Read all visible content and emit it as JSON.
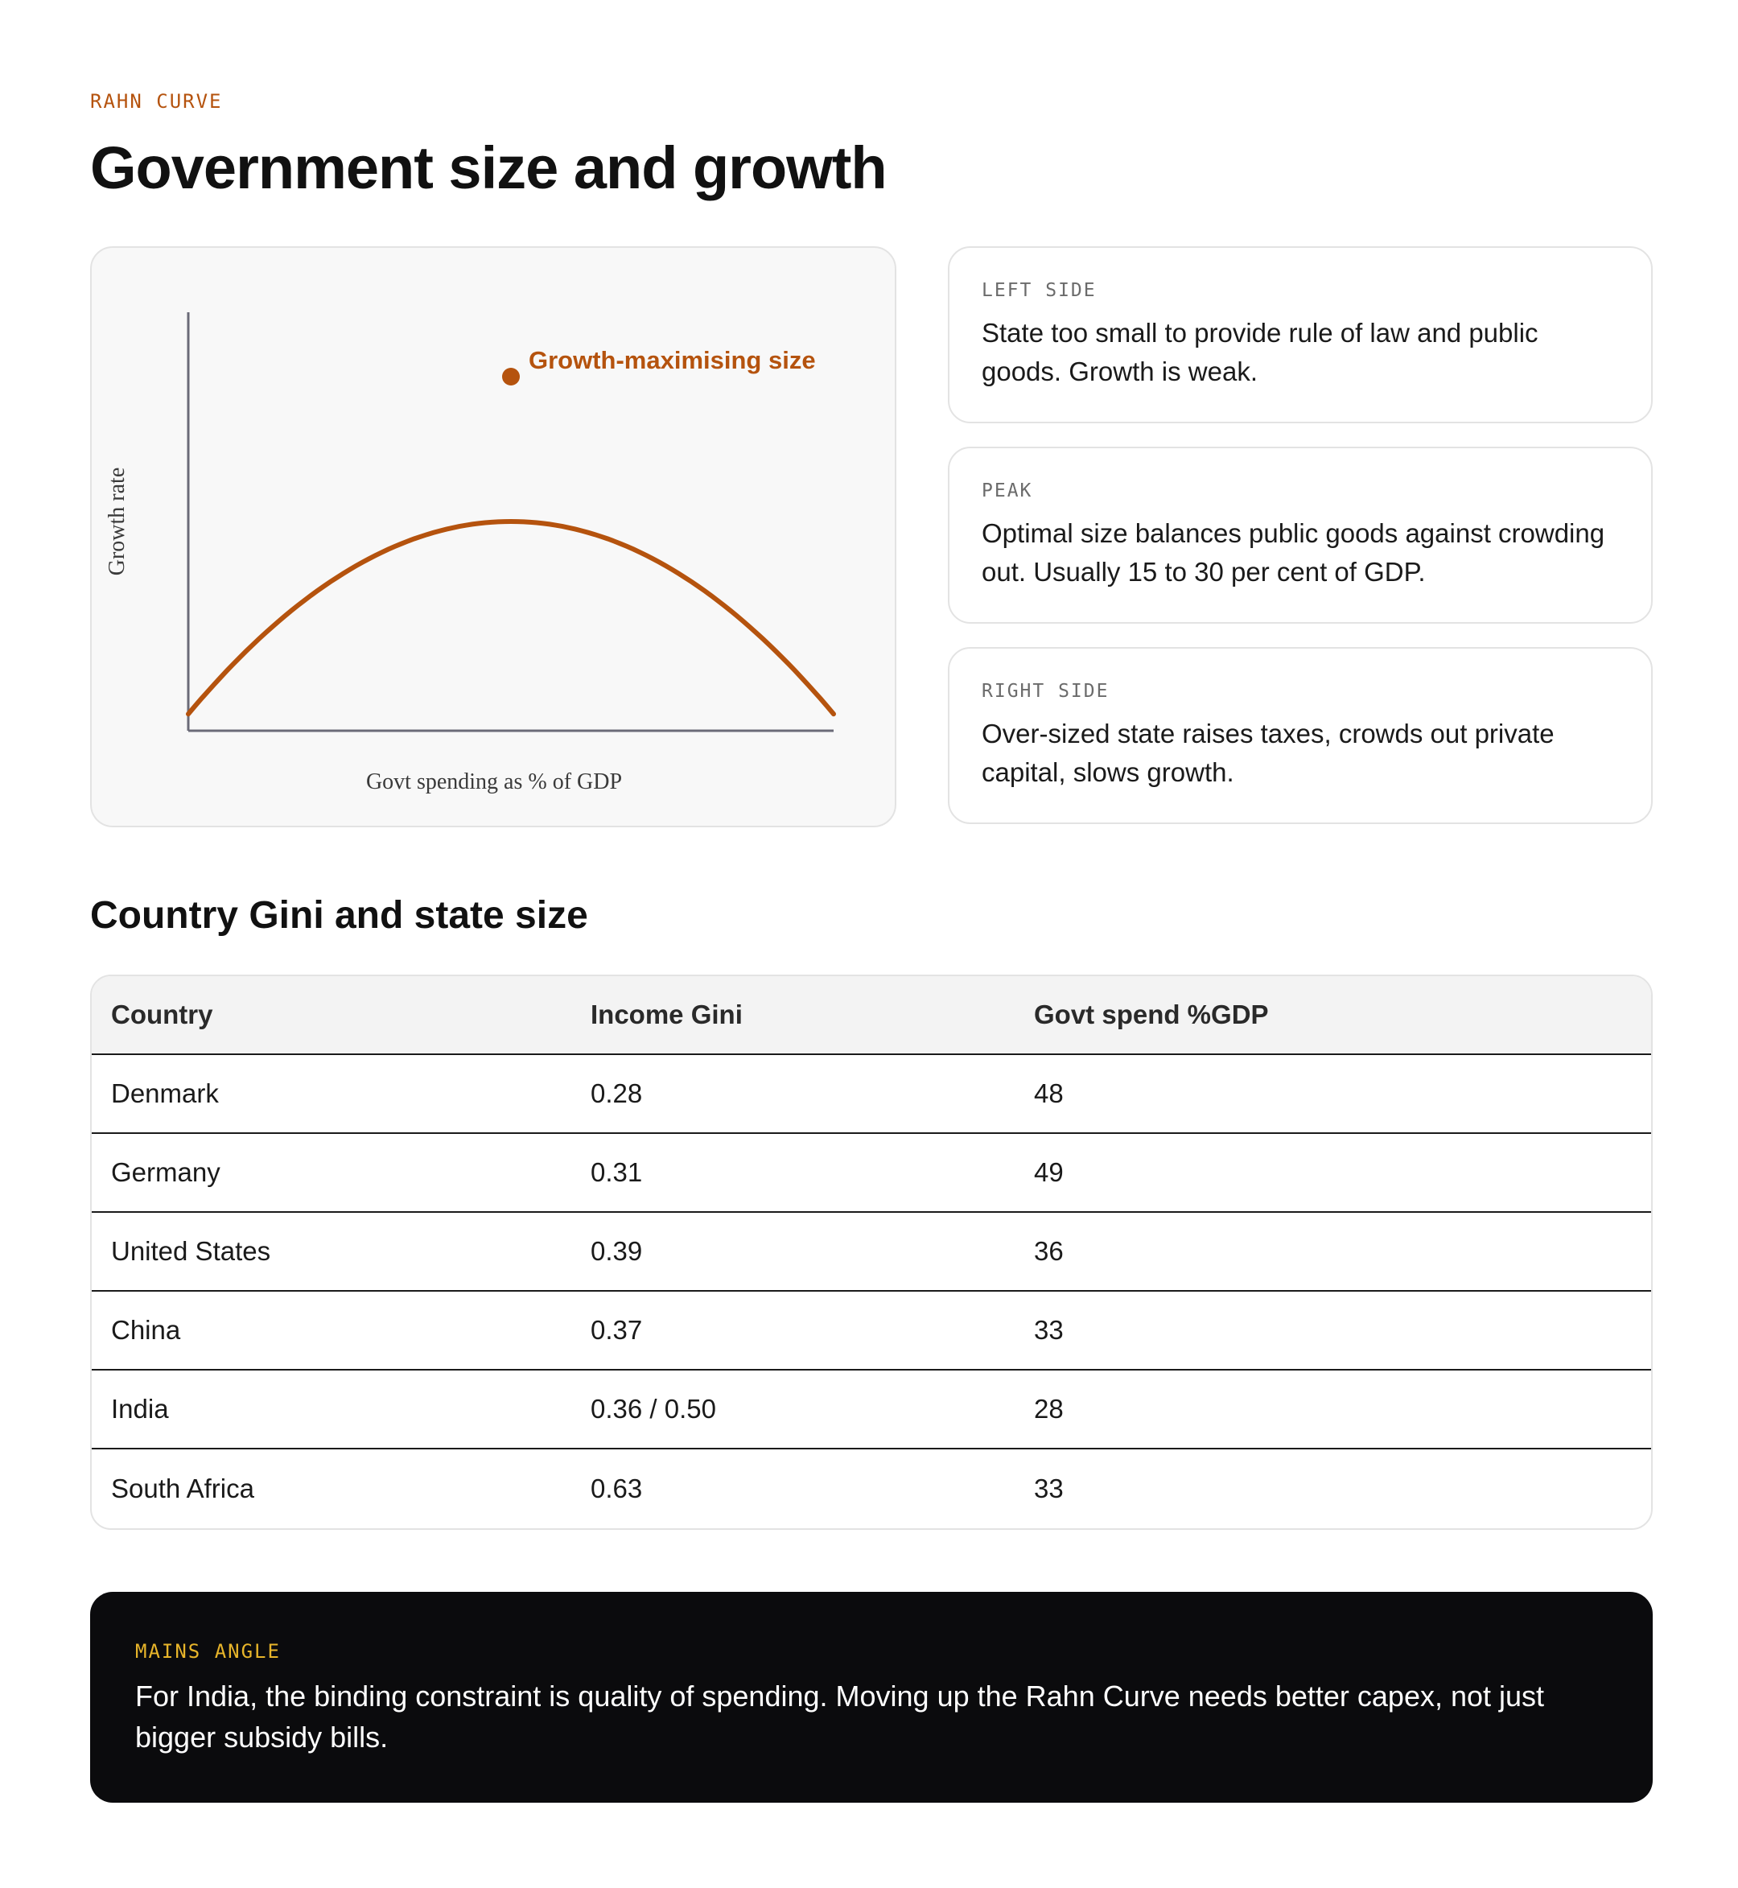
{
  "header": {
    "eyebrow": "RAHN CURVE",
    "title": "Government size and growth"
  },
  "chart_data": {
    "type": "line",
    "title": "",
    "xlabel": "Govt spending as % of GDP",
    "ylabel": "Growth rate",
    "grid": false,
    "series": [
      {
        "x": [
          0,
          50,
          100
        ],
        "y": [
          4,
          50,
          4
        ]
      }
    ],
    "annotation": {
      "text": "Growth-maximising size",
      "x": 50
    },
    "colors": {
      "curve": "#b5530e",
      "axis": "#6b6b78"
    }
  },
  "cards": [
    {
      "label": "LEFT SIDE",
      "text": "State too small to provide rule of law and public goods. Growth is weak."
    },
    {
      "label": "PEAK",
      "text": "Optimal size balances public goods against crowding out. Usually 15 to 30 per cent of GDP."
    },
    {
      "label": "RIGHT SIDE",
      "text": "Over-sized state raises taxes, crowds out private capital, slows growth."
    }
  ],
  "table": {
    "title": "Country Gini and state size",
    "headers": [
      "Country",
      "Income Gini",
      "Govt spend %GDP"
    ],
    "rows": [
      [
        "Denmark",
        "0.28",
        "48"
      ],
      [
        "Germany",
        "0.31",
        "49"
      ],
      [
        "United States",
        "0.39",
        "36"
      ],
      [
        "China",
        "0.37",
        "33"
      ],
      [
        "India",
        "0.36 / 0.50",
        "28"
      ],
      [
        "South Africa",
        "0.63",
        "33"
      ]
    ]
  },
  "callout": {
    "label": "MAINS ANGLE",
    "text": "For India, the binding constraint is quality of spending. Moving up the Rahn Curve needs better capex, not just bigger subsidy bills."
  }
}
